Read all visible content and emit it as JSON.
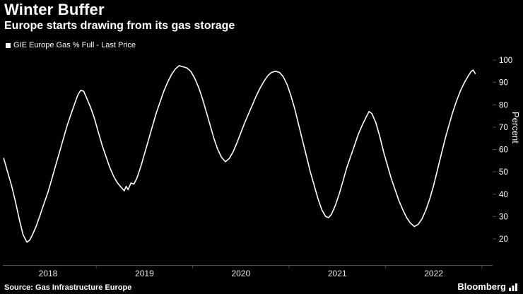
{
  "header": {
    "title": "Winter Buffer",
    "subtitle": "Europe starts drawing from its gas storage"
  },
  "legend": {
    "label": "GIE Europe Gas % Full - Last Price"
  },
  "footer": {
    "source": "Source: Gas Infrastructure Europe",
    "brand": "Bloomberg"
  },
  "colors": {
    "background": "#000000",
    "line": "#ffffff",
    "axis": "#4d4d4d",
    "tick_label": "#ffffff",
    "x_label": "#e6e6e6"
  },
  "chart_data": {
    "type": "line",
    "title": "Winter Buffer",
    "subtitle": "Europe starts drawing from its gas storage",
    "ylabel": "Percent",
    "xlabel": "",
    "grid": false,
    "legend_position": "top-left",
    "ylim": [
      20,
      100
    ],
    "yticks": [
      20,
      30,
      40,
      50,
      60,
      70,
      80,
      90,
      100
    ],
    "xticks": [
      {
        "pos": 2018.5,
        "label": "2018"
      },
      {
        "pos": 2019.5,
        "label": "2019"
      },
      {
        "pos": 2020.5,
        "label": "2020"
      },
      {
        "pos": 2021.5,
        "label": "2021"
      },
      {
        "pos": 2022.5,
        "label": "2022"
      }
    ],
    "x_range_displayed": [
      2018.0,
      2023.08
    ],
    "series": [
      {
        "name": "GIE Europe Gas % Full - Last Price",
        "points": [
          [
            2018.04,
            56
          ],
          [
            2018.08,
            50
          ],
          [
            2018.12,
            44
          ],
          [
            2018.16,
            37
          ],
          [
            2018.2,
            29
          ],
          [
            2018.24,
            22
          ],
          [
            2018.28,
            18.5
          ],
          [
            2018.31,
            19.5
          ],
          [
            2018.34,
            22
          ],
          [
            2018.38,
            26
          ],
          [
            2018.42,
            31
          ],
          [
            2018.46,
            36
          ],
          [
            2018.5,
            41
          ],
          [
            2018.54,
            47
          ],
          [
            2018.58,
            53
          ],
          [
            2018.62,
            59
          ],
          [
            2018.66,
            65
          ],
          [
            2018.7,
            71
          ],
          [
            2018.74,
            76
          ],
          [
            2018.78,
            81
          ],
          [
            2018.81,
            84.5
          ],
          [
            2018.84,
            86.5
          ],
          [
            2018.87,
            86
          ],
          [
            2018.9,
            83
          ],
          [
            2018.94,
            79
          ],
          [
            2018.98,
            74
          ],
          [
            2019.02,
            68
          ],
          [
            2019.06,
            62
          ],
          [
            2019.1,
            57
          ],
          [
            2019.14,
            52
          ],
          [
            2019.18,
            48
          ],
          [
            2019.22,
            45
          ],
          [
            2019.26,
            43
          ],
          [
            2019.29,
            41.5
          ],
          [
            2019.31,
            43.5
          ],
          [
            2019.33,
            42
          ],
          [
            2019.36,
            45
          ],
          [
            2019.39,
            44.5
          ],
          [
            2019.42,
            47
          ],
          [
            2019.46,
            52
          ],
          [
            2019.5,
            58
          ],
          [
            2019.54,
            64
          ],
          [
            2019.58,
            70
          ],
          [
            2019.62,
            76
          ],
          [
            2019.66,
            81
          ],
          [
            2019.7,
            86
          ],
          [
            2019.74,
            90
          ],
          [
            2019.78,
            93.5
          ],
          [
            2019.82,
            96
          ],
          [
            2019.86,
            97.5
          ],
          [
            2019.9,
            97
          ],
          [
            2019.94,
            96.5
          ],
          [
            2019.98,
            95
          ],
          [
            2020.02,
            92
          ],
          [
            2020.06,
            88
          ],
          [
            2020.1,
            83
          ],
          [
            2020.14,
            77
          ],
          [
            2020.18,
            71
          ],
          [
            2020.22,
            65
          ],
          [
            2020.26,
            60
          ],
          [
            2020.3,
            56.5
          ],
          [
            2020.34,
            54.5
          ],
          [
            2020.38,
            56
          ],
          [
            2020.42,
            59
          ],
          [
            2020.46,
            63
          ],
          [
            2020.5,
            67.5
          ],
          [
            2020.54,
            72
          ],
          [
            2020.58,
            76
          ],
          [
            2020.62,
            80
          ],
          [
            2020.66,
            84
          ],
          [
            2020.7,
            87.5
          ],
          [
            2020.74,
            90.5
          ],
          [
            2020.78,
            93
          ],
          [
            2020.82,
            94.5
          ],
          [
            2020.86,
            95
          ],
          [
            2020.9,
            94.5
          ],
          [
            2020.94,
            92.5
          ],
          [
            2020.98,
            89
          ],
          [
            2021.02,
            84
          ],
          [
            2021.06,
            78
          ],
          [
            2021.1,
            71
          ],
          [
            2021.14,
            64
          ],
          [
            2021.18,
            57
          ],
          [
            2021.22,
            50
          ],
          [
            2021.26,
            44
          ],
          [
            2021.3,
            38
          ],
          [
            2021.34,
            33
          ],
          [
            2021.38,
            30
          ],
          [
            2021.41,
            29.5
          ],
          [
            2021.44,
            31
          ],
          [
            2021.48,
            35
          ],
          [
            2021.52,
            40
          ],
          [
            2021.56,
            46
          ],
          [
            2021.6,
            52
          ],
          [
            2021.64,
            57
          ],
          [
            2021.68,
            62
          ],
          [
            2021.72,
            67
          ],
          [
            2021.76,
            71
          ],
          [
            2021.8,
            74.5
          ],
          [
            2021.83,
            77
          ],
          [
            2021.86,
            76
          ],
          [
            2021.9,
            72
          ],
          [
            2021.94,
            66
          ],
          [
            2021.98,
            59
          ],
          [
            2022.02,
            53
          ],
          [
            2022.06,
            47
          ],
          [
            2022.1,
            42
          ],
          [
            2022.14,
            37
          ],
          [
            2022.18,
            33
          ],
          [
            2022.22,
            29.5
          ],
          [
            2022.26,
            27
          ],
          [
            2022.3,
            25.5
          ],
          [
            2022.34,
            26.5
          ],
          [
            2022.38,
            29
          ],
          [
            2022.42,
            33
          ],
          [
            2022.46,
            38
          ],
          [
            2022.5,
            44
          ],
          [
            2022.54,
            51
          ],
          [
            2022.58,
            58
          ],
          [
            2022.62,
            65
          ],
          [
            2022.66,
            71
          ],
          [
            2022.7,
            77
          ],
          [
            2022.74,
            82
          ],
          [
            2022.78,
            86.5
          ],
          [
            2022.82,
            90
          ],
          [
            2022.86,
            93
          ],
          [
            2022.89,
            95
          ],
          [
            2022.91,
            95.5
          ],
          [
            2022.93,
            94
          ]
        ]
      }
    ]
  }
}
